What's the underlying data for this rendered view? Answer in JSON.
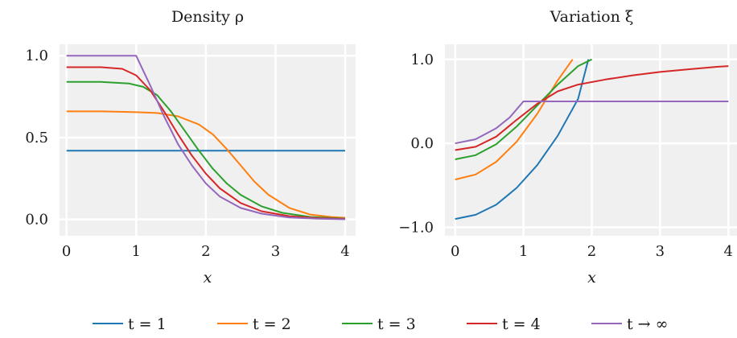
{
  "chart_data": [
    {
      "type": "line",
      "title": "Density ρ",
      "xlabel": "x",
      "ylabel": "",
      "xlim": [
        -0.1,
        4.15
      ],
      "ylim": [
        -0.1,
        1.07
      ],
      "xticks": [
        0,
        1,
        2,
        3,
        4
      ],
      "xtick_labels": [
        "0",
        "1",
        "2",
        "3",
        "4"
      ],
      "yticks": [
        0.0,
        0.5,
        1.0
      ],
      "ytick_labels": [
        "0.0",
        "0.5",
        "1.0"
      ],
      "grid": true,
      "series": [
        {
          "name": "t = 1",
          "color": "#1f77b4",
          "x": [
            0,
            1,
            2,
            3,
            4
          ],
          "y": [
            0.42,
            0.42,
            0.42,
            0.42,
            0.42
          ]
        },
        {
          "name": "t = 2",
          "color": "#ff7f0e",
          "x": [
            0,
            0.5,
            1.0,
            1.3,
            1.6,
            1.9,
            2.1,
            2.3,
            2.5,
            2.7,
            2.9,
            3.2,
            3.5,
            3.8,
            4.0
          ],
          "y": [
            0.66,
            0.66,
            0.655,
            0.65,
            0.63,
            0.58,
            0.52,
            0.43,
            0.33,
            0.23,
            0.15,
            0.07,
            0.03,
            0.015,
            0.01
          ]
        },
        {
          "name": "t = 3",
          "color": "#2ca02c",
          "x": [
            0,
            0.5,
            0.9,
            1.1,
            1.3,
            1.5,
            1.7,
            1.9,
            2.1,
            2.3,
            2.5,
            2.8,
            3.1,
            3.5,
            4.0
          ],
          "y": [
            0.84,
            0.84,
            0.83,
            0.81,
            0.76,
            0.66,
            0.54,
            0.42,
            0.31,
            0.22,
            0.15,
            0.08,
            0.04,
            0.015,
            0.005
          ]
        },
        {
          "name": "t = 4",
          "color": "#d62728",
          "x": [
            0,
            0.5,
            0.8,
            1.0,
            1.2,
            1.4,
            1.6,
            1.8,
            2.0,
            2.2,
            2.5,
            2.8,
            3.2,
            3.6,
            4.0
          ],
          "y": [
            0.93,
            0.93,
            0.92,
            0.88,
            0.79,
            0.66,
            0.52,
            0.39,
            0.28,
            0.19,
            0.1,
            0.05,
            0.02,
            0.008,
            0.003
          ]
        },
        {
          "name": "t → ∞",
          "color": "#9467bd",
          "x": [
            0,
            1.0,
            1.2,
            1.4,
            1.6,
            1.8,
            2.0,
            2.2,
            2.5,
            2.8,
            3.2,
            3.6,
            4.0
          ],
          "y": [
            1.0,
            1.0,
            0.82,
            0.63,
            0.46,
            0.33,
            0.22,
            0.14,
            0.07,
            0.035,
            0.012,
            0.004,
            0.001
          ]
        }
      ]
    },
    {
      "type": "line",
      "title": "Variation ξ",
      "xlabel": "x",
      "ylabel": "",
      "xlim": [
        -0.15,
        4.15
      ],
      "ylim": [
        -1.1,
        1.18
      ],
      "xticks": [
        0,
        1,
        2,
        3,
        4
      ],
      "xtick_labels": [
        "0",
        "1",
        "2",
        "3",
        "4"
      ],
      "yticks": [
        -1.0,
        0.0,
        1.0
      ],
      "ytick_labels": [
        "−1.0",
        "0.0",
        "1.0"
      ],
      "grid": true,
      "series": [
        {
          "name": "t = 1",
          "color": "#1f77b4",
          "x": [
            0,
            0.3,
            0.6,
            0.9,
            1.2,
            1.5,
            1.8,
            1.95
          ],
          "y": [
            -0.9,
            -0.85,
            -0.73,
            -0.53,
            -0.26,
            0.09,
            0.53,
            1.0
          ]
        },
        {
          "name": "t = 2",
          "color": "#ff7f0e",
          "x": [
            0,
            0.3,
            0.6,
            0.9,
            1.2,
            1.5,
            1.72
          ],
          "y": [
            -0.43,
            -0.37,
            -0.22,
            0.02,
            0.35,
            0.75,
            1.0
          ]
        },
        {
          "name": "t = 3",
          "color": "#2ca02c",
          "x": [
            0,
            0.3,
            0.6,
            0.9,
            1.2,
            1.5,
            1.8,
            2.0
          ],
          "y": [
            -0.19,
            -0.14,
            -0.01,
            0.2,
            0.45,
            0.7,
            0.92,
            1.0
          ]
        },
        {
          "name": "t = 4",
          "color": "#d62728",
          "x": [
            0,
            0.3,
            0.6,
            0.9,
            1.2,
            1.5,
            1.8,
            2.2,
            2.6,
            3.0,
            3.4,
            3.8,
            4.0
          ],
          "y": [
            -0.08,
            -0.04,
            0.08,
            0.28,
            0.47,
            0.62,
            0.7,
            0.76,
            0.81,
            0.85,
            0.88,
            0.91,
            0.92
          ]
        },
        {
          "name": "t → ∞",
          "color": "#9467bd",
          "x": [
            0,
            0.3,
            0.6,
            0.8,
            1.0,
            1.5,
            2.0,
            3.0,
            4.0
          ],
          "y": [
            0.0,
            0.05,
            0.18,
            0.31,
            0.5,
            0.5,
            0.5,
            0.5,
            0.5
          ]
        }
      ]
    }
  ],
  "legend": {
    "placement": "bottom",
    "entries": [
      {
        "label": "t = 1",
        "color": "#1f77b4"
      },
      {
        "label": "t = 2",
        "color": "#ff7f0e"
      },
      {
        "label": "t = 3",
        "color": "#2ca02c"
      },
      {
        "label": "t = 4",
        "color": "#d62728"
      },
      {
        "label": "t → ∞",
        "color": "#9467bd"
      }
    ]
  }
}
